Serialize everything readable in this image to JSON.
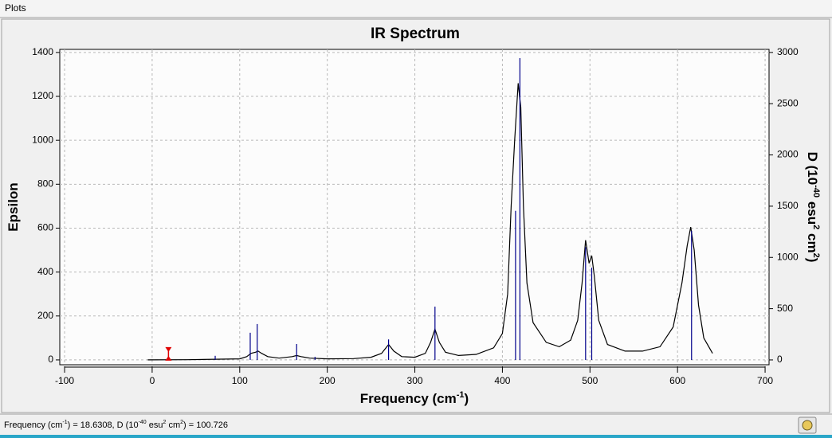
{
  "window": {
    "title": "Plots"
  },
  "status_bar": {
    "parts": [
      "Frequency (cm",
      "-1",
      ") = 18.6308, D (10",
      "-40",
      " esu",
      "2",
      " cm",
      "2",
      ") = 100.726"
    ]
  },
  "chart_data": {
    "type": "line",
    "title": "IR Spectrum",
    "xlabel": [
      "Frequency (cm",
      "-1",
      ")"
    ],
    "ylabel": [
      "Epsilon"
    ],
    "y2label": [
      "D (10",
      "-40",
      " esu",
      "2",
      " cm",
      "2",
      ")"
    ],
    "xlim": [
      -105.5,
      704.5
    ],
    "xticks": [
      -100,
      0,
      100,
      200,
      300,
      400,
      500,
      600,
      700
    ],
    "ylim": [
      -22,
      1414
    ],
    "yticks": [
      0,
      200,
      400,
      600,
      800,
      1000,
      1200,
      1400
    ],
    "y2lim": [
      -47,
      3030
    ],
    "y2ticks": [
      0,
      500,
      1000,
      1500,
      2000,
      2500,
      3000
    ],
    "grid": true,
    "cursor": {
      "x": 18.6308,
      "color": "#e00000"
    },
    "series": [
      {
        "style": "line",
        "color": "#000000",
        "x": [
          -5,
          40,
          72,
          100,
          108,
          113,
          118,
          121,
          125,
          132,
          145,
          160,
          165,
          170,
          180,
          200,
          230,
          250,
          262,
          270,
          276,
          285,
          300,
          312,
          318,
          323,
          328,
          335,
          350,
          370,
          390,
          400,
          406,
          410,
          414,
          418,
          421,
          424,
          428,
          435,
          450,
          465,
          478,
          486,
          491,
          495,
          499,
          502,
          505,
          510,
          520,
          540,
          560,
          580,
          595,
          605,
          611,
          615,
          619,
          624,
          630,
          640
        ],
        "values": [
          0,
          1,
          3,
          5,
          15,
          30,
          35,
          40,
          30,
          15,
          8,
          15,
          20,
          15,
          8,
          5,
          6,
          12,
          30,
          70,
          40,
          15,
          12,
          30,
          80,
          140,
          80,
          35,
          20,
          25,
          55,
          120,
          300,
          700,
          1000,
          1260,
          1150,
          700,
          350,
          170,
          80,
          60,
          90,
          180,
          350,
          545,
          440,
          475,
          380,
          180,
          70,
          40,
          40,
          60,
          150,
          350,
          520,
          605,
          500,
          250,
          100,
          30
        ]
      },
      {
        "style": "stick",
        "axis": "y2",
        "color": "#00008b",
        "x": [
          72,
          112,
          120,
          165,
          186,
          270,
          323,
          415,
          420,
          495,
          502,
          616
        ],
        "values": [
          40,
          265,
          350,
          155,
          30,
          200,
          520,
          1455,
          2945,
          1100,
          900,
          1260
        ]
      }
    ]
  }
}
